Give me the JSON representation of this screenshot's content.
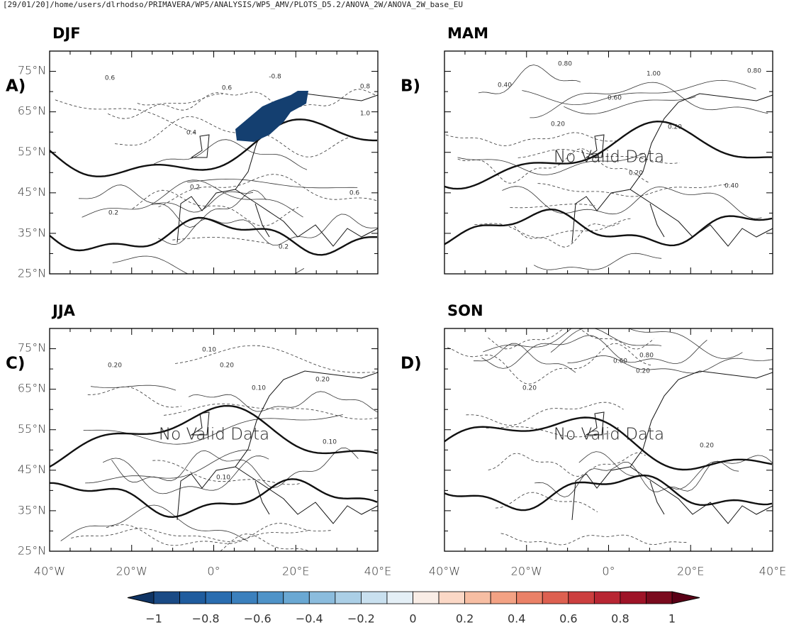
{
  "header": "[29/01/20]/home/users/dlrhodso/PRIMAVERA/WP5/ANALYSIS/WP5_AMV/PLOTS_D5.2/ANOVA_2W/ANOVA_2W_base_EU",
  "panels": [
    {
      "title": "DJF",
      "letter": "A)",
      "contour_labels": [
        "0.6",
        "-0.8",
        "0.8",
        "0.6",
        "0.4",
        "0.2",
        "0.2",
        "1.0",
        "0.6",
        "0.2"
      ]
    },
    {
      "title": "MAM",
      "letter": "B)",
      "note": "No Valid Data",
      "contour_labels": [
        "0.80",
        "1.00",
        "0.80",
        "0.40",
        "0.60",
        "0.20",
        "0.20",
        "0.20",
        "0.40"
      ]
    },
    {
      "title": "JJA",
      "letter": "C)",
      "note": "No Valid Data",
      "contour_labels": [
        "0.10",
        "0.20",
        "0.20",
        "0.10",
        "0.20",
        "0.10",
        "0.10"
      ]
    },
    {
      "title": "SON",
      "letter": "D)",
      "note": "No Valid Data",
      "contour_labels": [
        "0.80",
        "0.60",
        "0.20",
        "0.20",
        "0.20"
      ]
    }
  ],
  "lat_labels": [
    "75°N",
    "65°N",
    "55°N",
    "45°N",
    "35°N",
    "25°N"
  ],
  "lon_labels": [
    "40°W",
    "20°W",
    "0°",
    "20°E",
    "40°E"
  ],
  "colorbar": {
    "ticks": [
      "−1",
      "−0.8",
      "−0.6",
      "−0.4",
      "−0.2",
      "0",
      "0.2",
      "0.4",
      "0.6",
      "0.8",
      "1"
    ],
    "colors": [
      "#1a4a85",
      "#1f5c9e",
      "#2a6db0",
      "#3b80bd",
      "#4f93c8",
      "#6aa8d3",
      "#8bbcdd",
      "#abcfe6",
      "#c9e0ef",
      "#e4eff6",
      "#f9ede6",
      "#fbd8c6",
      "#f7bea3",
      "#f3a284",
      "#ea8167",
      "#dd6050",
      "#cc3f3f",
      "#b82633",
      "#9e1327",
      "#7a0a1d"
    ],
    "under": "#0f3464",
    "over": "#5a0016"
  }
}
